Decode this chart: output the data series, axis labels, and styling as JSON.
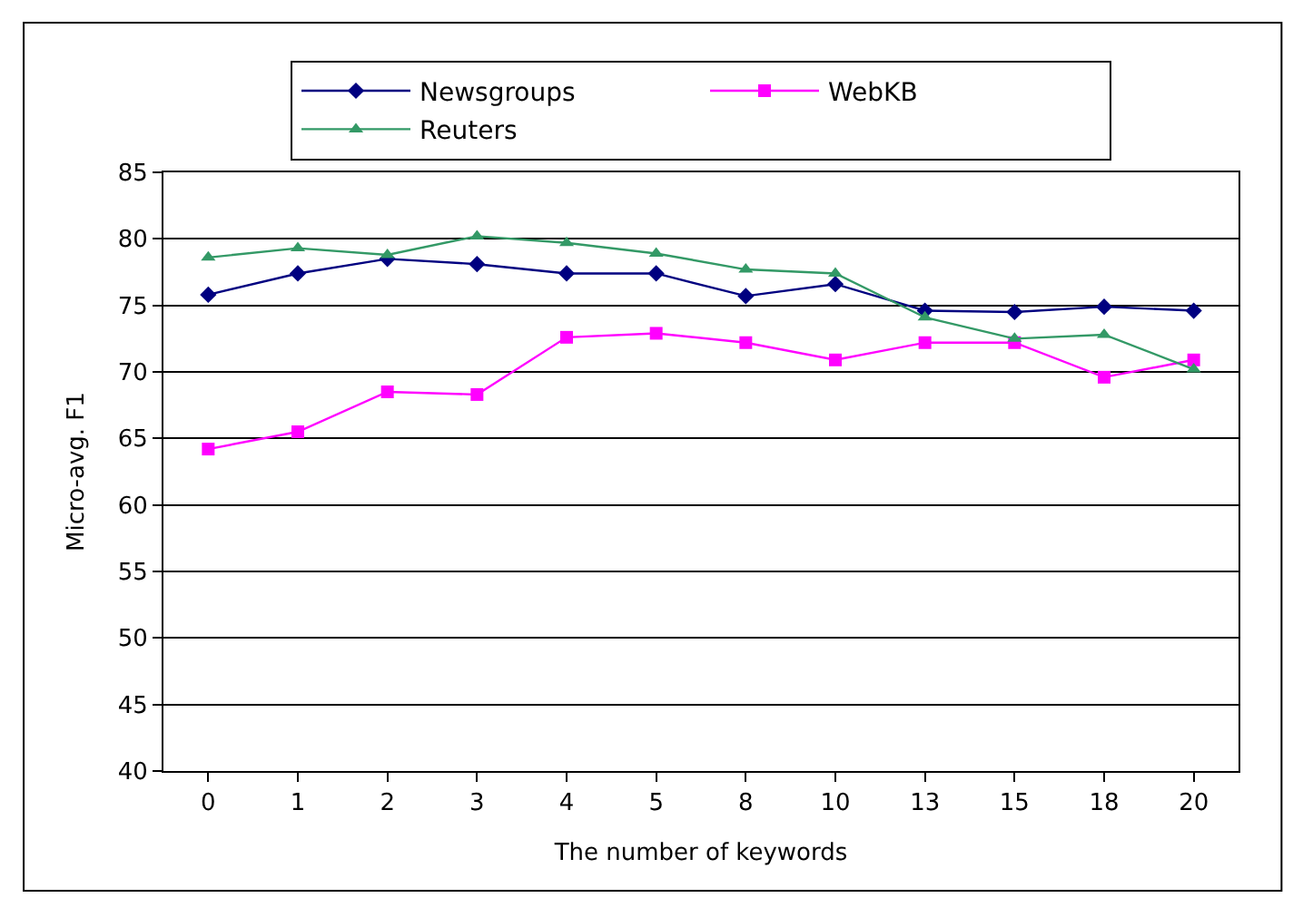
{
  "chart_data": {
    "type": "line",
    "xlabel": "The number of keywords",
    "ylabel": "Micro-avg. F1",
    "categories": [
      "0",
      "1",
      "2",
      "3",
      "4",
      "5",
      "8",
      "10",
      "13",
      "15",
      "18",
      "20"
    ],
    "series": [
      {
        "name": "Newsgroups",
        "color": "#000080",
        "marker": "diamond",
        "values": [
          75.8,
          77.4,
          78.5,
          78.1,
          77.4,
          77.4,
          75.7,
          76.6,
          74.6,
          74.5,
          74.9,
          74.6
        ]
      },
      {
        "name": "WebKB",
        "color": "#ff00ff",
        "marker": "square",
        "values": [
          64.2,
          65.5,
          68.5,
          68.3,
          72.6,
          72.9,
          72.2,
          70.9,
          72.2,
          72.2,
          69.6,
          70.9
        ]
      },
      {
        "name": "Reuters",
        "color": "#339966",
        "marker": "triangle",
        "values": [
          78.6,
          79.3,
          78.8,
          80.2,
          79.7,
          78.9,
          77.7,
          77.4,
          74.1,
          72.5,
          72.8,
          70.2
        ]
      }
    ],
    "ylim": [
      40,
      85
    ],
    "yticks": [
      40,
      45,
      50,
      55,
      60,
      65,
      70,
      75,
      80,
      85
    ],
    "grid": "y",
    "legend": "top",
    "line_style": "solid"
  }
}
